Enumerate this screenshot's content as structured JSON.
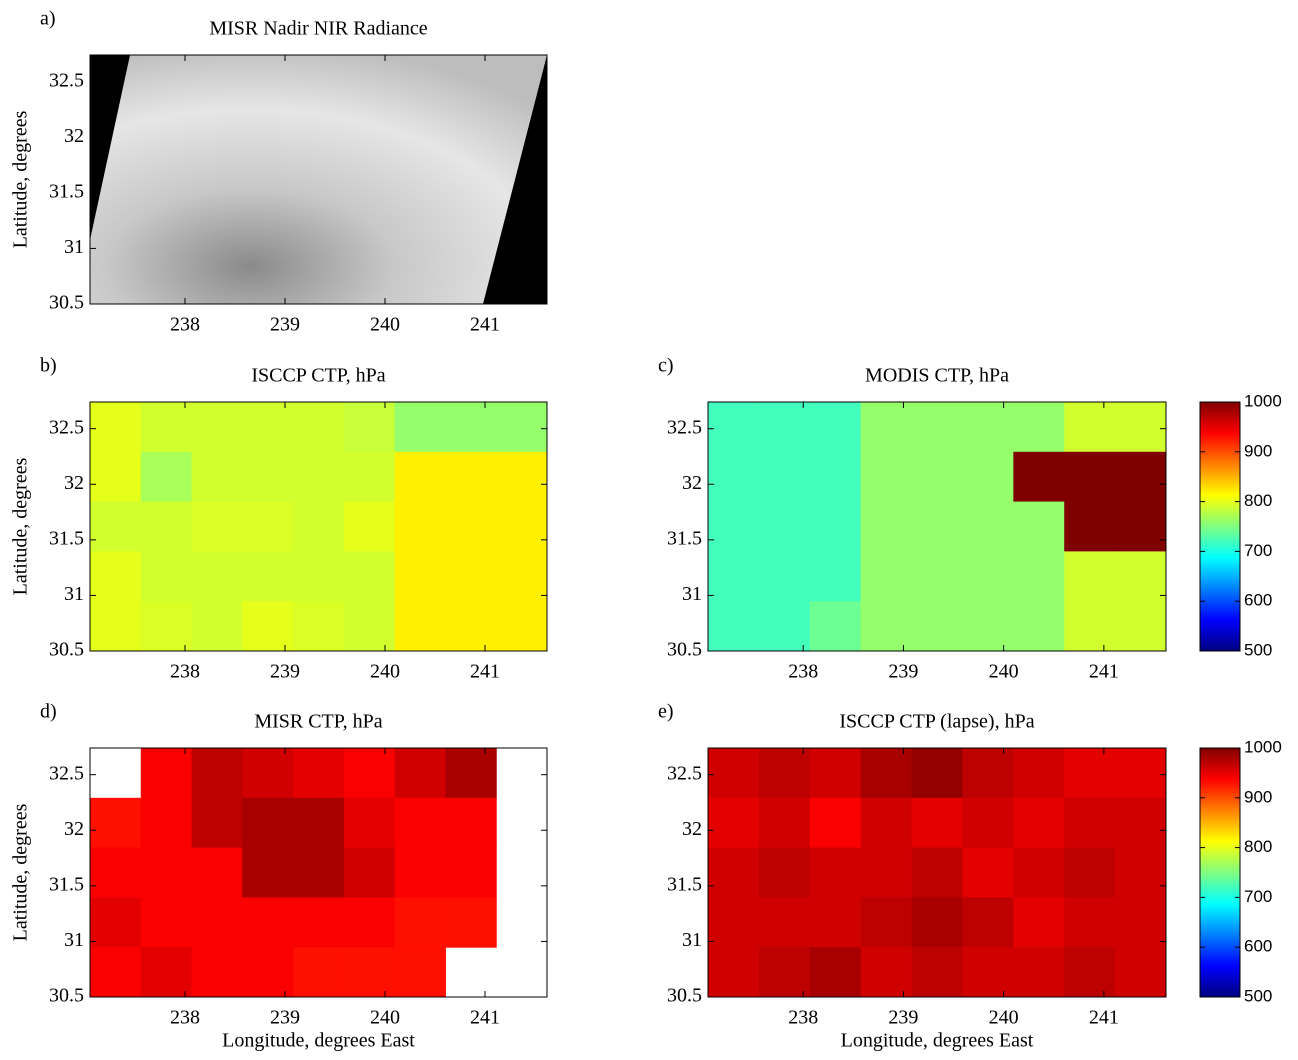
{
  "chart_data": [
    {
      "type": "image",
      "label": "a)",
      "title": "MISR Nadir NIR Radiance",
      "ylabel": "Latitude, degrees",
      "xlim": [
        237.05,
        241.62
      ],
      "ylim": [
        30.5,
        32.74
      ],
      "xticks": [
        238,
        239,
        240,
        241
      ],
      "yticks": [
        30.5,
        31,
        31.5,
        32,
        32.5
      ],
      "colormap": "gray"
    },
    {
      "type": "heatmap",
      "label": "b)",
      "title": "ISCCP CTP, hPa",
      "ylabel": "Latitude, degrees",
      "xlim": [
        237.05,
        241.62
      ],
      "ylim": [
        30.5,
        32.74
      ],
      "xticks": [
        238,
        239,
        240,
        241
      ],
      "yticks": [
        30.5,
        31,
        31.5,
        32,
        32.5
      ],
      "colormap": "jet",
      "clim": [
        500,
        1000
      ],
      "values": [
        [
          800,
          790,
          790,
          790,
          790,
          785,
          760,
          760,
          760
        ],
        [
          800,
          770,
          790,
          790,
          790,
          790,
          820,
          820,
          820
        ],
        [
          790,
          790,
          795,
          795,
          790,
          800,
          820,
          820,
          820
        ],
        [
          800,
          790,
          790,
          790,
          790,
          790,
          820,
          820,
          820
        ],
        [
          800,
          795,
          790,
          800,
          795,
          790,
          820,
          820,
          820
        ]
      ]
    },
    {
      "type": "heatmap",
      "label": "c)",
      "title": "MODIS CTP, hPa",
      "xlim": [
        237.05,
        241.62
      ],
      "ylim": [
        30.5,
        32.74
      ],
      "xticks": [
        238,
        239,
        240,
        241
      ],
      "yticks": [
        30.5,
        31,
        31.5,
        32,
        32.5
      ],
      "colormap": "jet",
      "clim": [
        500,
        1000
      ],
      "values": [
        [
          720,
          720,
          720,
          760,
          760,
          760,
          760,
          790,
          790
        ],
        [
          720,
          720,
          720,
          760,
          760,
          760,
          1000,
          1000,
          1000
        ],
        [
          720,
          720,
          720,
          760,
          760,
          760,
          760,
          1000,
          1000
        ],
        [
          720,
          720,
          720,
          760,
          760,
          760,
          760,
          790,
          790
        ],
        [
          720,
          720,
          740,
          760,
          760,
          760,
          760,
          790,
          790
        ]
      ],
      "colorbar": {
        "ticks": [
          500,
          600,
          700,
          800,
          900,
          1000
        ]
      }
    },
    {
      "type": "heatmap",
      "label": "d)",
      "title": "MISR CTP, hPa",
      "ylabel": "Latitude, degrees",
      "xlabel": "Longitude, degrees East",
      "xlim": [
        237.05,
        241.62
      ],
      "ylim": [
        30.5,
        32.74
      ],
      "xticks": [
        238,
        239,
        240,
        241
      ],
      "yticks": [
        30.5,
        31,
        31.5,
        32,
        32.5
      ],
      "colormap": "jet",
      "clim": [
        500,
        1000
      ],
      "values": [
        [
          null,
          940,
          970,
          960,
          950,
          940,
          960,
          980,
          null
        ],
        [
          930,
          940,
          970,
          980,
          980,
          950,
          940,
          940,
          null
        ],
        [
          940,
          940,
          940,
          980,
          980,
          960,
          940,
          940,
          null
        ],
        [
          950,
          940,
          940,
          940,
          940,
          940,
          930,
          930,
          null
        ],
        [
          940,
          950,
          940,
          940,
          930,
          930,
          930,
          null,
          null
        ]
      ]
    },
    {
      "type": "heatmap",
      "label": "e)",
      "title": "ISCCP CTP (lapse), hPa",
      "xlabel": "Longitude, degrees East",
      "xlim": [
        237.05,
        241.62
      ],
      "ylim": [
        30.5,
        32.74
      ],
      "xticks": [
        238,
        239,
        240,
        241
      ],
      "yticks": [
        30.5,
        31,
        31.5,
        32,
        32.5
      ],
      "colormap": "jet",
      "clim": [
        500,
        1000
      ],
      "values": [
        [
          960,
          970,
          960,
          980,
          990,
          970,
          960,
          950,
          950
        ],
        [
          950,
          960,
          940,
          960,
          950,
          960,
          950,
          960,
          960
        ],
        [
          960,
          970,
          960,
          960,
          970,
          950,
          960,
          970,
          960
        ],
        [
          960,
          960,
          960,
          970,
          980,
          970,
          950,
          960,
          960
        ],
        [
          960,
          970,
          980,
          960,
          970,
          960,
          960,
          970,
          960
        ]
      ],
      "colorbar": {
        "ticks": [
          500,
          600,
          700,
          800,
          900,
          1000
        ]
      }
    }
  ]
}
